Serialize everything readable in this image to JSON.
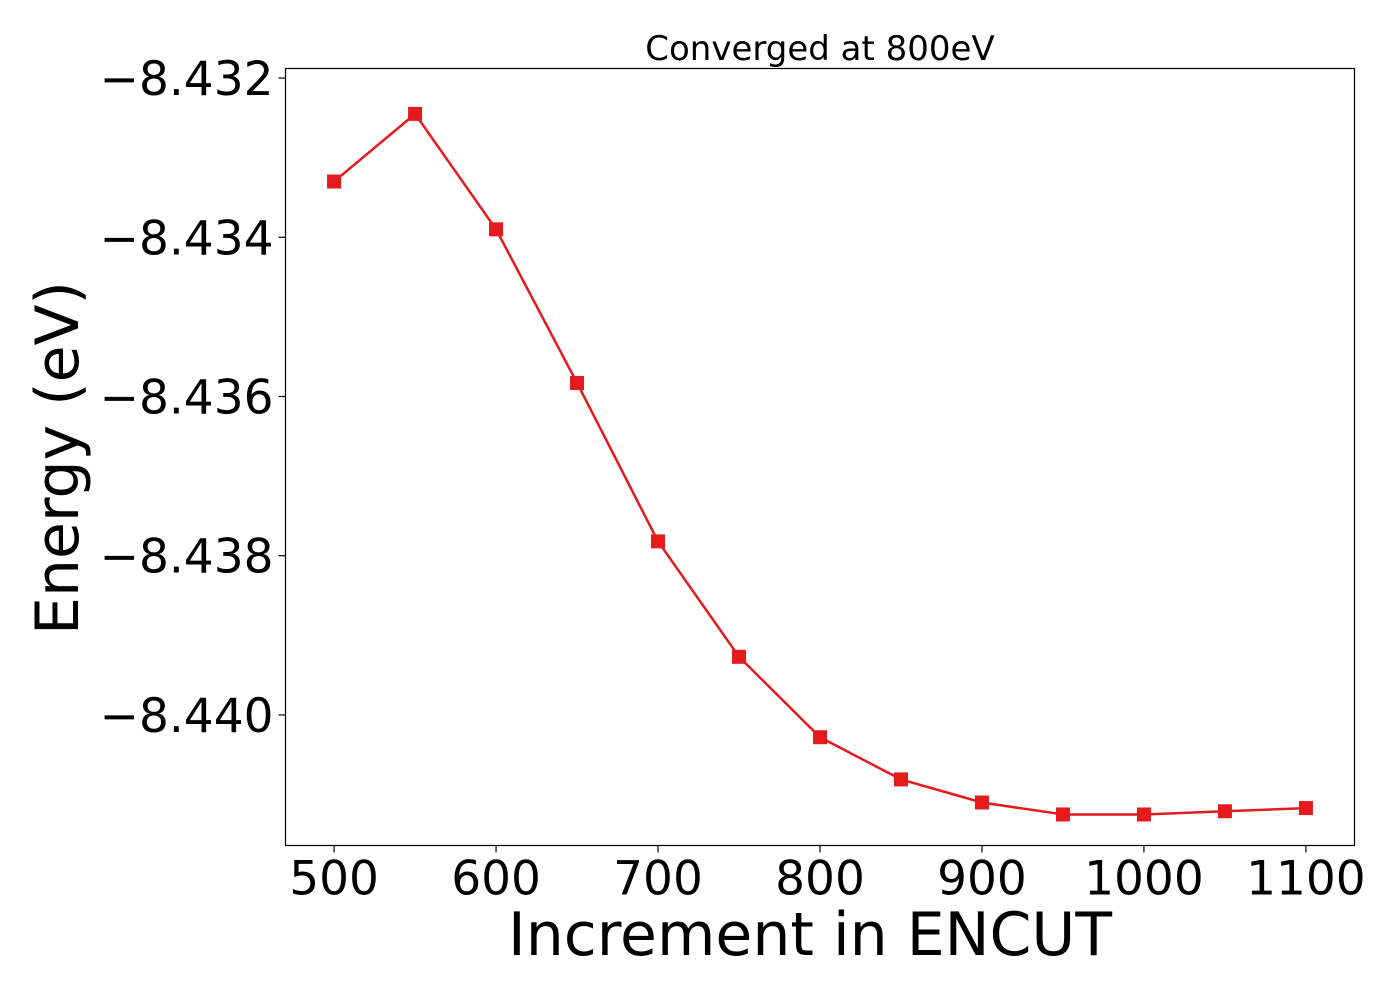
{
  "chart_data": {
    "type": "line",
    "title": "Converged at 800eV",
    "xlabel": "Increment in ENCUT",
    "ylabel": "Energy (eV)",
    "x": [
      500,
      550,
      600,
      650,
      700,
      750,
      800,
      850,
      900,
      950,
      1000,
      1050,
      1100
    ],
    "series": [
      {
        "values": [
          -8.4333,
          -8.43245,
          -8.4339,
          -8.43583,
          -8.43782,
          -8.43927,
          -8.44028,
          -8.44081,
          -8.4411,
          -8.44125,
          -8.44125,
          -8.44121,
          -8.44117
        ],
        "color": "#e41a1c",
        "marker": "square"
      }
    ],
    "xlim": [
      470,
      1130
    ],
    "ylim": [
      -8.44164,
      -8.43188
    ],
    "xticks": [
      500,
      600,
      700,
      800,
      900,
      1000,
      1100
    ],
    "xtick_labels": [
      "500",
      "600",
      "700",
      "800",
      "900",
      "1000",
      "1100"
    ],
    "yticks": [
      -8.432,
      -8.434,
      -8.436,
      -8.438,
      -8.44
    ],
    "ytick_labels": [
      "−8.432",
      "−8.434",
      "−8.436",
      "−8.438",
      "−8.440"
    ],
    "grid": false,
    "legend": false
  }
}
